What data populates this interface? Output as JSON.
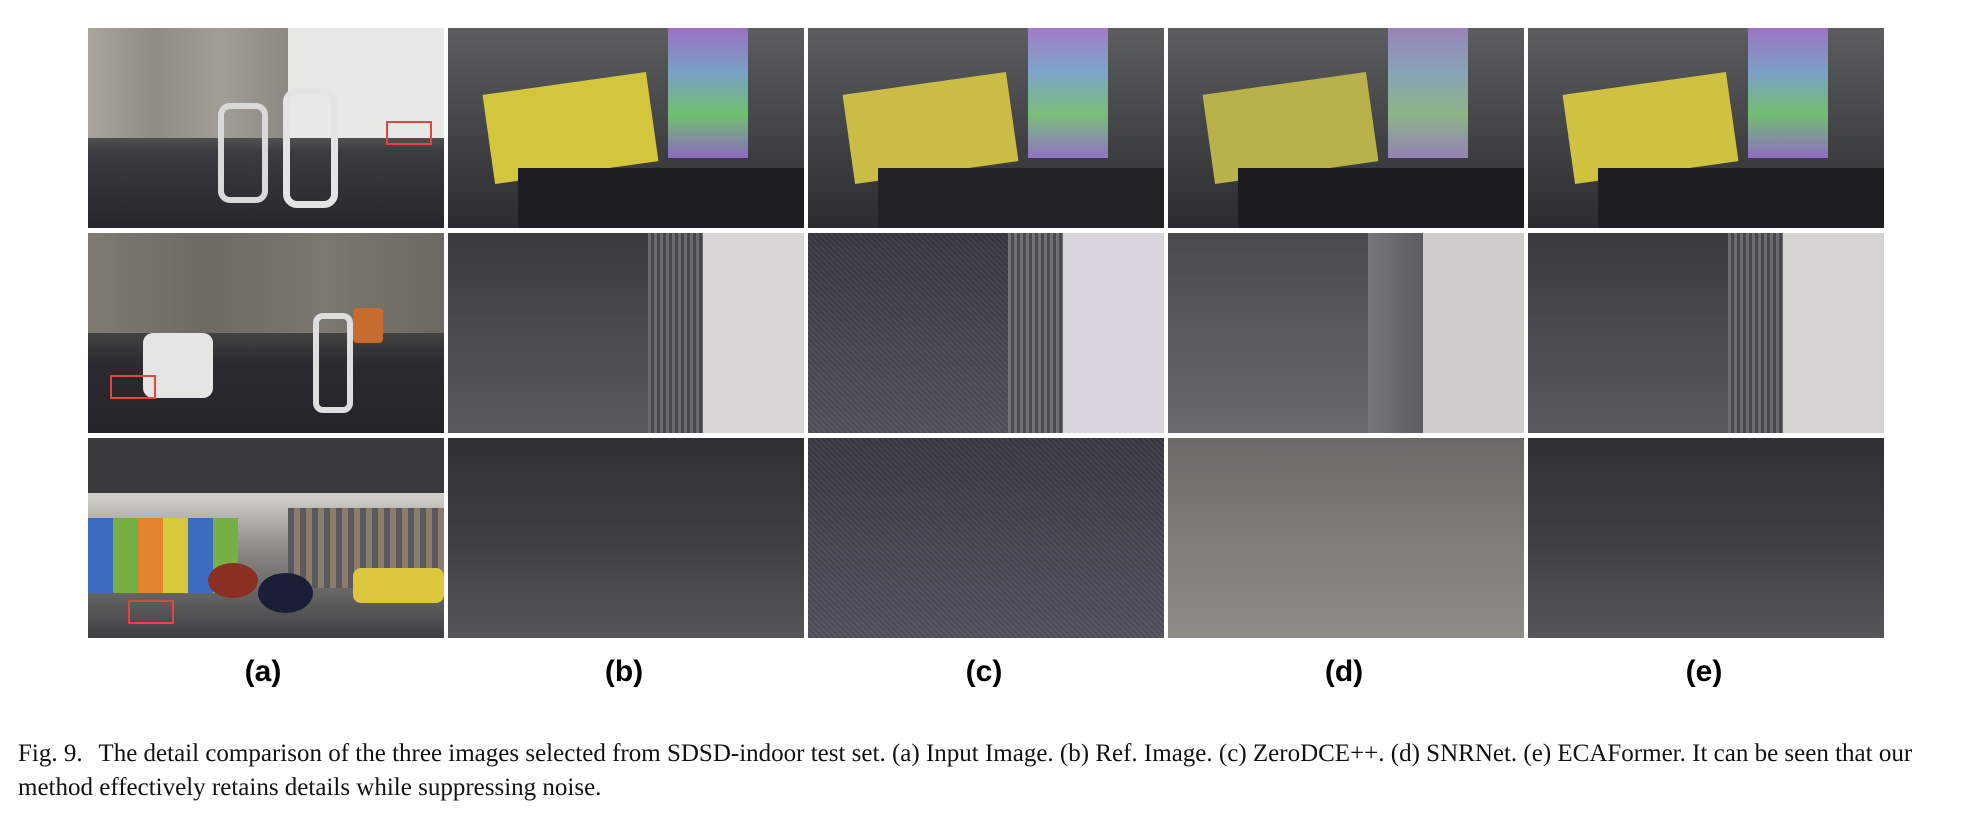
{
  "panel_labels": [
    "(a)",
    "(b)",
    "(c)",
    "(d)",
    "(e)"
  ],
  "caption": {
    "figure_number": "Fig. 9.",
    "text": "The detail comparison of the three images selected from SDSD-indoor test set. (a) Input Image. (b) Ref. Image. (c) ZeroDCE++. (d) SNRNet. (e) ECAFormer. It can be seen that our method effectively retains details while suppressing noise."
  },
  "rows": [
    {
      "scene": "office-with-chairs-and-box"
    },
    {
      "scene": "office-lounge-with-armchair"
    },
    {
      "scene": "office-with-colorful-wall-and-bean-bags"
    }
  ],
  "colors": {
    "highlight_box": "#e2463f"
  }
}
